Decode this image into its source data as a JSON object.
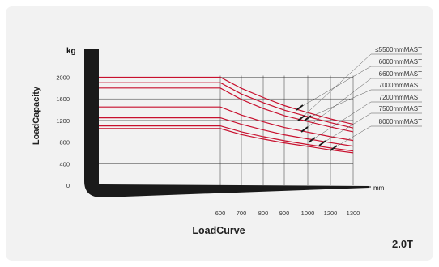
{
  "chart_data": {
    "type": "line",
    "title": "",
    "ylabel": "LoadCapacity",
    "xlabel": "LoadCurve",
    "y_unit": "kg",
    "x_unit": "mm",
    "model": "2.0T",
    "y_ticks": [
      0,
      400,
      800,
      1200,
      1600,
      2000
    ],
    "x_ticks": [
      600,
      700,
      800,
      900,
      1000,
      1200,
      1300
    ],
    "ylim": [
      0,
      2000
    ],
    "grid": true,
    "legend_position": "top-right",
    "colors": {
      "series": "#c8102e",
      "frame": "#1a1a1a",
      "grid": "#333333",
      "leader": "#555555"
    },
    "series": [
      {
        "name": "≤5500mmMAST",
        "x": [
          0,
          600,
          700,
          800,
          900,
          1000,
          1200,
          1300
        ],
        "values": [
          2000,
          2000,
          1795,
          1625,
          1475,
          1345,
          1230,
          1130
        ]
      },
      {
        "name": "6000mmMAST",
        "x": [
          0,
          600,
          700,
          800,
          900,
          1000,
          1200,
          1300
        ],
        "values": [
          1900,
          1900,
          1690,
          1530,
          1390,
          1270,
          1160,
          1060
        ]
      },
      {
        "name": "6600mmMAST",
        "x": [
          0,
          600,
          700,
          800,
          900,
          1000,
          1200,
          1300
        ],
        "values": [
          1800,
          1800,
          1590,
          1420,
          1290,
          1180,
          1080,
          990
        ]
      },
      {
        "name": "7000mmMAST",
        "x": [
          0,
          600,
          700,
          800,
          900,
          1000,
          1200,
          1300
        ],
        "values": [
          1450,
          1450,
          1300,
          1175,
          1070,
          985,
          900,
          830
        ]
      },
      {
        "name": "7200mmMAST",
        "x": [
          0,
          600,
          700,
          800,
          900,
          1000,
          1200,
          1300
        ],
        "values": [
          1250,
          1250,
          1130,
          1025,
          935,
          860,
          790,
          725
        ]
      },
      {
        "name": "7500mmMAST",
        "x": [
          0,
          600,
          700,
          800,
          900,
          1000,
          1200,
          1300
        ],
        "values": [
          1100,
          1100,
          990,
          900,
          825,
          755,
          690,
          635
        ]
      },
      {
        "name": "8000mmMAST",
        "x": [
          0,
          600,
          700,
          800,
          900,
          1000,
          1200,
          1300
        ],
        "values": [
          1050,
          1050,
          940,
          855,
          785,
          720,
          655,
          600
        ]
      }
    ]
  }
}
